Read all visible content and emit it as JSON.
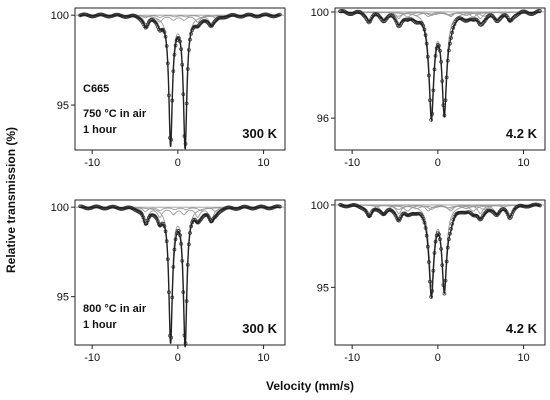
{
  "figure": {
    "ylabel": "Relative transmission (%)",
    "xlabel": "Velocity (mm/s)"
  },
  "chart_data": [
    {
      "type": "line",
      "panel": "top-left",
      "xlim": [
        -12,
        12.5
      ],
      "ylim": [
        92.5,
        100.4
      ],
      "xticks": [
        -10,
        0,
        10
      ],
      "yticks": [
        95,
        100
      ],
      "annotations": [
        "C665",
        "750 °C in air",
        "1 hour"
      ],
      "temperature_label": "300 K",
      "sites": [
        {
          "center": 0.0,
          "split": 0.85,
          "depth": 7.0,
          "width": 0.24
        },
        {
          "center": 0.1,
          "h": 3.8,
          "depth": 1.1,
          "width": 0.35
        },
        {
          "center": 0.3,
          "h": 4.1,
          "depth": 0.35,
          "width": 0.35
        }
      ]
    },
    {
      "type": "line",
      "panel": "top-right",
      "xlim": [
        -12,
        12.5
      ],
      "ylim": [
        94.8,
        100.15
      ],
      "xticks": [
        -10,
        0,
        10
      ],
      "yticks": [
        96,
        100
      ],
      "annotations": [],
      "temperature_label": "4.2 K",
      "sites": [
        {
          "center": 0.0,
          "split": 0.75,
          "depth": 3.6,
          "width": 0.32
        },
        {
          "center": 0.2,
          "h": 8.2,
          "depth": 0.75,
          "width": 0.36
        },
        {
          "center": 0.3,
          "h": 6.6,
          "depth": 0.55,
          "width": 0.45
        },
        {
          "center": 0.4,
          "h": 5.0,
          "depth": 0.35,
          "width": 0.55
        }
      ]
    },
    {
      "type": "line",
      "panel": "bottom-left",
      "xlim": [
        -12,
        12.5
      ],
      "ylim": [
        92.3,
        100.4
      ],
      "xticks": [
        -10,
        0,
        10
      ],
      "yticks": [
        95,
        100
      ],
      "annotations": [
        "800 °C in air",
        "1 hour"
      ],
      "temperature_label": "300 K",
      "sites": [
        {
          "center": 0.0,
          "split": 0.85,
          "depth": 7.2,
          "width": 0.24
        },
        {
          "center": 0.1,
          "h": 3.8,
          "depth": 1.6,
          "width": 0.35
        },
        {
          "center": 0.3,
          "h": 4.1,
          "depth": 0.55,
          "width": 0.35
        }
      ]
    },
    {
      "type": "line",
      "panel": "bottom-right",
      "xlim": [
        -12,
        12.5
      ],
      "ylim": [
        91.5,
        100.3
      ],
      "xticks": [
        -10,
        0,
        10
      ],
      "yticks": [
        95,
        100
      ],
      "annotations": [],
      "temperature_label": "4.2 K",
      "sites": [
        {
          "center": 0.0,
          "split": 0.75,
          "depth": 4.8,
          "width": 0.32
        },
        {
          "center": 0.2,
          "h": 8.2,
          "depth": 1.6,
          "width": 0.36
        },
        {
          "center": 0.3,
          "h": 6.6,
          "depth": 1.1,
          "width": 0.45
        },
        {
          "center": 0.4,
          "h": 5.0,
          "depth": 0.6,
          "width": 0.55
        }
      ]
    }
  ]
}
